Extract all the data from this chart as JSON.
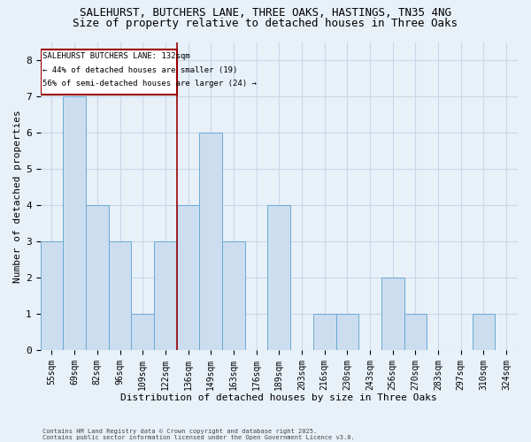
{
  "title": "SALEHURST, BUTCHERS LANE, THREE OAKS, HASTINGS, TN35 4NG",
  "subtitle": "Size of property relative to detached houses in Three Oaks",
  "xlabel": "Distribution of detached houses by size in Three Oaks",
  "ylabel": "Number of detached properties",
  "categories": [
    "55sqm",
    "69sqm",
    "82sqm",
    "96sqm",
    "109sqm",
    "122sqm",
    "136sqm",
    "149sqm",
    "163sqm",
    "176sqm",
    "189sqm",
    "203sqm",
    "216sqm",
    "230sqm",
    "243sqm",
    "256sqm",
    "270sqm",
    "283sqm",
    "297sqm",
    "310sqm",
    "324sqm"
  ],
  "values": [
    3,
    7,
    4,
    3,
    1,
    3,
    4,
    6,
    3,
    0,
    4,
    0,
    1,
    1,
    0,
    2,
    1,
    0,
    0,
    1,
    0
  ],
  "bar_color": "#ccddf0",
  "bar_edge_color": "#6aaad4",
  "grid_color": "#c8d8e8",
  "annotation_box_color": "#990000",
  "vline_color": "#990000",
  "vline_x_index": 6,
  "annotation_text_line1": "SALEHURST BUTCHERS LANE: 132sqm",
  "annotation_text_line2": "← 44% of detached houses are smaller (19)",
  "annotation_text_line3": "56% of semi-detached houses are larger (24) →",
  "ylim": [
    0,
    8.5
  ],
  "yticks": [
    0,
    1,
    2,
    3,
    4,
    5,
    6,
    7,
    8
  ],
  "footer_line1": "Contains HM Land Registry data © Crown copyright and database right 2025.",
  "footer_line2": "Contains public sector information licensed under the Open Government Licence v3.0.",
  "bg_color": "#e8f0f8",
  "title_fontsize": 9,
  "subtitle_fontsize": 9,
  "tick_fontsize": 7,
  "xlabel_fontsize": 8,
  "ylabel_fontsize": 8,
  "footer_fontsize": 5,
  "ann_fontsize": 6.5
}
